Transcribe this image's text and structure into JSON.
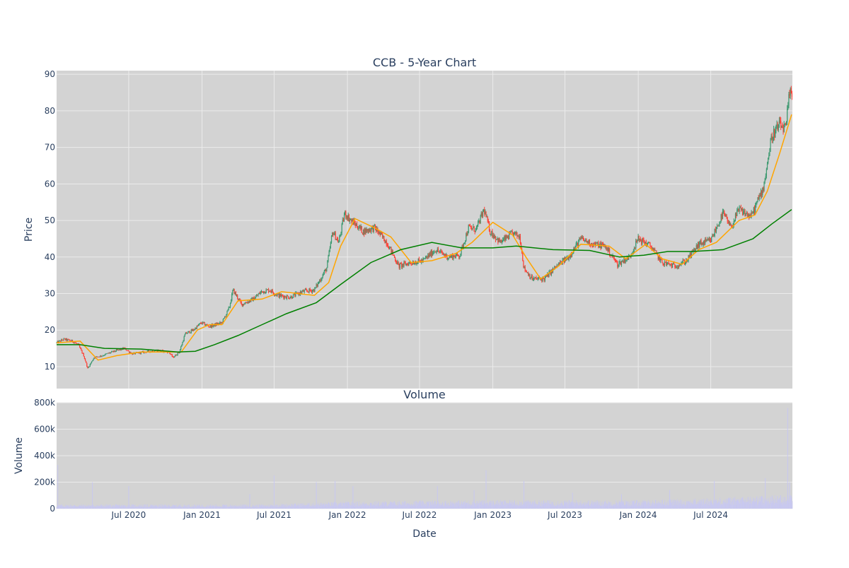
{
  "chart_data": {
    "type": "candlestick",
    "title": "CCB - 5-Year Chart",
    "price_panel": {
      "ylabel": "Price",
      "ylim": [
        4,
        91
      ],
      "yticks": [
        10,
        20,
        30,
        40,
        50,
        60,
        70,
        80,
        90
      ],
      "grid": true,
      "colors": {
        "up": "#3d9970",
        "down": "#ff4136",
        "ma_fast": "#ffa500",
        "ma_slow": "#008000",
        "plot_bg": "#d3d3d3",
        "grid": "#ebebeb"
      },
      "price_path": [
        [
          "2020-01-02",
          16.5
        ],
        [
          "2020-01-20",
          17.5
        ],
        [
          "2020-02-10",
          17.0
        ],
        [
          "2020-02-25",
          16.0
        ],
        [
          "2020-03-10",
          13.0
        ],
        [
          "2020-03-20",
          9.5
        ],
        [
          "2020-04-05",
          12.5
        ],
        [
          "2020-04-25",
          13.0
        ],
        [
          "2020-05-20",
          14.0
        ],
        [
          "2020-06-20",
          15.0
        ],
        [
          "2020-07-10",
          13.5
        ],
        [
          "2020-08-10",
          14.0
        ],
        [
          "2020-09-10",
          14.5
        ],
        [
          "2020-10-10",
          14.0
        ],
        [
          "2020-10-20",
          12.5
        ],
        [
          "2020-11-05",
          14.0
        ],
        [
          "2020-11-20",
          19.0
        ],
        [
          "2020-12-10",
          20.0
        ],
        [
          "2020-12-30",
          22.0
        ],
        [
          "2021-01-20",
          21.0
        ],
        [
          "2021-02-20",
          22.0
        ],
        [
          "2021-03-10",
          26.0
        ],
        [
          "2021-03-20",
          31.0
        ],
        [
          "2021-04-10",
          27.0
        ],
        [
          "2021-05-10",
          28.5
        ],
        [
          "2021-05-30",
          30.5
        ],
        [
          "2021-06-20",
          31.0
        ],
        [
          "2021-07-10",
          29.5
        ],
        [
          "2021-08-10",
          29.0
        ],
        [
          "2021-09-10",
          30.5
        ],
        [
          "2021-10-10",
          31.0
        ],
        [
          "2021-11-10",
          37.0
        ],
        [
          "2021-11-25",
          47.0
        ],
        [
          "2021-12-10",
          44.0
        ],
        [
          "2021-12-25",
          52.0
        ],
        [
          "2022-01-10",
          50.0
        ],
        [
          "2022-02-10",
          47.0
        ],
        [
          "2022-03-10",
          48.0
        ],
        [
          "2022-04-10",
          44.0
        ],
        [
          "2022-05-10",
          37.5
        ],
        [
          "2022-06-10",
          38.5
        ],
        [
          "2022-07-10",
          39.0
        ],
        [
          "2022-08-10",
          42.0
        ],
        [
          "2022-09-10",
          40.0
        ],
        [
          "2022-10-10",
          40.5
        ],
        [
          "2022-11-01",
          48.0
        ],
        [
          "2022-11-20",
          47.5
        ],
        [
          "2022-12-10",
          53.0
        ],
        [
          "2022-12-25",
          47.0
        ],
        [
          "2023-01-20",
          44.0
        ],
        [
          "2023-02-20",
          46.5
        ],
        [
          "2023-03-10",
          45.5
        ],
        [
          "2023-03-20",
          37.0
        ],
        [
          "2023-04-10",
          34.0
        ],
        [
          "2023-05-10",
          34.0
        ],
        [
          "2023-06-10",
          37.5
        ],
        [
          "2023-07-10",
          40.0
        ],
        [
          "2023-08-10",
          45.0
        ],
        [
          "2023-09-10",
          43.5
        ],
        [
          "2023-10-10",
          43.0
        ],
        [
          "2023-11-10",
          38.0
        ],
        [
          "2023-12-10",
          40.0
        ],
        [
          "2024-01-01",
          45.0
        ],
        [
          "2024-02-01",
          43.0
        ],
        [
          "2024-03-01",
          38.5
        ],
        [
          "2024-04-01",
          37.5
        ],
        [
          "2024-05-01",
          39.0
        ],
        [
          "2024-06-01",
          43.5
        ],
        [
          "2024-07-01",
          44.5
        ],
        [
          "2024-08-01",
          52.0
        ],
        [
          "2024-08-20",
          48.0
        ],
        [
          "2024-09-10",
          53.0
        ],
        [
          "2024-10-10",
          51.0
        ],
        [
          "2024-11-10",
          59.0
        ],
        [
          "2024-12-01",
          73.0
        ],
        [
          "2024-12-20",
          76.0
        ],
        [
          "2025-01-05",
          75.0
        ],
        [
          "2025-01-15",
          85.0
        ],
        [
          "2025-01-20",
          84.0
        ]
      ],
      "ma_fast": [
        [
          "2020-01-02",
          16.5
        ],
        [
          "2020-03-01",
          17.0
        ],
        [
          "2020-04-15",
          11.8
        ],
        [
          "2020-06-01",
          13.0
        ],
        [
          "2020-08-01",
          14.0
        ],
        [
          "2020-10-15",
          14.0
        ],
        [
          "2020-11-10",
          14.0
        ],
        [
          "2020-12-20",
          20.0
        ],
        [
          "2021-01-20",
          21.5
        ],
        [
          "2021-02-20",
          21.5
        ],
        [
          "2021-04-01",
          28.0
        ],
        [
          "2021-06-01",
          28.5
        ],
        [
          "2021-07-20",
          30.5
        ],
        [
          "2021-10-10",
          29.5
        ],
        [
          "2021-11-15",
          33.0
        ],
        [
          "2021-12-15",
          43.0
        ],
        [
          "2022-01-20",
          50.5
        ],
        [
          "2022-03-10",
          48.0
        ],
        [
          "2022-04-20",
          45.5
        ],
        [
          "2022-06-10",
          38.5
        ],
        [
          "2022-08-01",
          39.0
        ],
        [
          "2022-10-01",
          41.0
        ],
        [
          "2022-11-10",
          44.0
        ],
        [
          "2023-01-01",
          49.5
        ],
        [
          "2023-02-20",
          46.0
        ],
        [
          "2023-03-25",
          40.0
        ],
        [
          "2023-05-01",
          34.0
        ],
        [
          "2023-06-15",
          37.5
        ],
        [
          "2023-08-10",
          43.5
        ],
        [
          "2023-10-20",
          43.0
        ],
        [
          "2023-12-01",
          39.5
        ],
        [
          "2024-01-20",
          43.5
        ],
        [
          "2024-03-01",
          39.5
        ],
        [
          "2024-04-20",
          38.0
        ],
        [
          "2024-06-01",
          42.0
        ],
        [
          "2024-07-15",
          44.0
        ],
        [
          "2024-09-10",
          50.0
        ],
        [
          "2024-10-20",
          51.5
        ],
        [
          "2024-11-20",
          58.0
        ],
        [
          "2024-12-20",
          68.0
        ],
        [
          "2025-01-20",
          79.0
        ]
      ],
      "ma_slow": [
        [
          "2020-01-02",
          16.0
        ],
        [
          "2020-03-01",
          16.0
        ],
        [
          "2020-05-01",
          15.0
        ],
        [
          "2020-08-01",
          14.8
        ],
        [
          "2020-11-01",
          14.0
        ],
        [
          "2020-12-15",
          14.2
        ],
        [
          "2021-02-01",
          16.0
        ],
        [
          "2021-04-01",
          18.5
        ],
        [
          "2021-06-01",
          21.5
        ],
        [
          "2021-08-01",
          24.5
        ],
        [
          "2021-10-15",
          27.5
        ],
        [
          "2021-12-15",
          32.5
        ],
        [
          "2022-03-01",
          38.5
        ],
        [
          "2022-05-15",
          42.0
        ],
        [
          "2022-08-01",
          44.0
        ],
        [
          "2022-10-15",
          42.5
        ],
        [
          "2023-01-01",
          42.5
        ],
        [
          "2023-03-01",
          43.0
        ],
        [
          "2023-06-01",
          42.0
        ],
        [
          "2023-09-01",
          41.8
        ],
        [
          "2023-11-15",
          40.0
        ],
        [
          "2024-01-15",
          40.5
        ],
        [
          "2024-03-15",
          41.5
        ],
        [
          "2024-05-15",
          41.5
        ],
        [
          "2024-08-01",
          42.0
        ],
        [
          "2024-10-15",
          45.0
        ],
        [
          "2024-12-01",
          49.0
        ],
        [
          "2025-01-20",
          53.0
        ]
      ]
    },
    "volume_panel": {
      "title": "Volume",
      "ylabel": "Volume",
      "ylim": [
        0,
        800000
      ],
      "yticks": [
        0,
        200000,
        400000,
        600000,
        800000
      ],
      "ytick_labels": [
        "0",
        "200k",
        "400k",
        "600k",
        "800k"
      ],
      "bar_color": "#c8c8f0",
      "baseline": [
        [
          "2020-01-02",
          30000
        ],
        [
          "2021-06-01",
          30000
        ],
        [
          "2022-01-01",
          50000
        ],
        [
          "2022-06-01",
          55000
        ],
        [
          "2023-01-01",
          60000
        ],
        [
          "2023-06-01",
          60000
        ],
        [
          "2024-01-01",
          60000
        ],
        [
          "2024-06-01",
          70000
        ],
        [
          "2025-01-20",
          100000
        ]
      ],
      "spikes": [
        [
          "2020-01-05",
          330000
        ],
        [
          "2020-04-01",
          200000
        ],
        [
          "2020-07-01",
          170000
        ],
        [
          "2021-05-01",
          110000
        ],
        [
          "2021-07-01",
          250000
        ],
        [
          "2021-10-15",
          200000
        ],
        [
          "2021-12-01",
          210000
        ],
        [
          "2022-01-15",
          170000
        ],
        [
          "2022-08-15",
          170000
        ],
        [
          "2022-11-15",
          140000
        ],
        [
          "2022-12-15",
          290000
        ],
        [
          "2023-03-20",
          210000
        ],
        [
          "2023-07-20",
          120000
        ],
        [
          "2023-11-20",
          110000
        ],
        [
          "2024-03-20",
          140000
        ],
        [
          "2024-07-10",
          210000
        ],
        [
          "2024-11-15",
          230000
        ],
        [
          "2025-01-10",
          760000
        ],
        [
          "2025-01-15",
          200000
        ]
      ]
    },
    "x_axis": {
      "xlabel": "Date",
      "range": [
        "2020-01-02",
        "2025-01-22"
      ],
      "ticks": [
        "2020-07-01",
        "2021-01-01",
        "2021-07-01",
        "2022-01-01",
        "2022-07-01",
        "2023-01-01",
        "2023-07-01",
        "2024-01-01",
        "2024-07-01"
      ],
      "tick_labels": [
        "Jul 2020",
        "Jan 2021",
        "Jul 2021",
        "Jan 2022",
        "Jul 2022",
        "Jan 2023",
        "Jul 2023",
        "Jan 2024",
        "Jul 2024"
      ]
    }
  }
}
